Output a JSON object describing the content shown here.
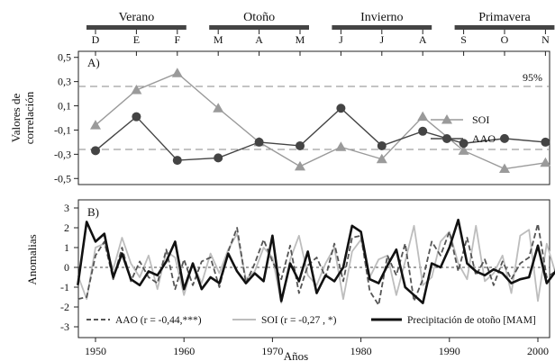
{
  "chart_data": [
    {
      "panel_label": "A)",
      "type": "line",
      "ylabel_lines": [
        "Valores de",
        "correlación"
      ],
      "ylim": [
        -0.55,
        0.55
      ],
      "yticks": [
        "0,5",
        "0,3",
        "0,1",
        "-0,1",
        "-0,3",
        "-0,5"
      ],
      "ytick_values": [
        0.5,
        0.3,
        0.1,
        -0.1,
        -0.3,
        -0.5
      ],
      "categories": [
        "D",
        "E",
        "F",
        "M",
        "A",
        "M",
        "J",
        "J",
        "A",
        "S",
        "O",
        "N"
      ],
      "seasons": [
        {
          "label": "Verano",
          "from": 0,
          "to": 2
        },
        {
          "label": "Otoño",
          "from": 3,
          "to": 5
        },
        {
          "label": "Invierno",
          "from": 6,
          "to": 8
        },
        {
          "label": "Primavera",
          "from": 9,
          "to": 11
        }
      ],
      "significance_level": 0.26,
      "significance_label": "95%",
      "series": [
        {
          "name": "SOI",
          "color": "#9a9a9a",
          "marker": "triangle",
          "values": [
            -0.06,
            0.23,
            0.37,
            0.08,
            -0.2,
            -0.4,
            -0.24,
            -0.34,
            0.01,
            -0.27,
            -0.42,
            -0.37
          ]
        },
        {
          "name": "AAO",
          "color": "#444444",
          "marker": "circle",
          "values": [
            -0.27,
            0.01,
            -0.35,
            -0.33,
            -0.2,
            -0.23,
            0.08,
            -0.23,
            -0.11,
            -0.21,
            -0.17,
            -0.2
          ]
        }
      ]
    },
    {
      "panel_label": "B)",
      "type": "line",
      "ylabel": "Anomalias",
      "xlabel": "Años",
      "xlim": [
        1945,
        2007
      ],
      "xticks": [
        1950,
        1960,
        1970,
        1980,
        1990,
        2000
      ],
      "ylim": [
        -3.2,
        3.2
      ],
      "yticks": [
        3,
        2,
        1,
        0,
        -1,
        -2,
        -3
      ],
      "start_year": 1948,
      "series": [
        {
          "name": "AAO (r = -0,44,***)",
          "color": "#555555",
          "style": "dashed",
          "values": [
            -1.6,
            -1.5,
            0.6,
            1.3,
            -0.6,
            1.0,
            -0.7,
            0.3,
            -0.5,
            -0.8,
            0.9,
            -1.1,
            0.4,
            -0.9,
            0.3,
            0.5,
            -1.0,
            0.8,
            2.0,
            -0.8,
            0.2,
            1.4,
            0.3,
            -0.6,
            1.1,
            -1.3,
            0.1,
            0.5,
            -0.5,
            1.2,
            -0.7,
            1.5,
            1.6,
            -1.2,
            -1.9,
            0.6,
            -0.4,
            1.2,
            -1.7,
            -0.6,
            1.3,
            0.6,
            1.8,
            -0.2,
            1.5,
            -0.4,
            0.4,
            -0.9,
            0.3,
            -0.6,
            0.2,
            0.5,
            2.2,
            -0.5,
            -0.2,
            0.2
          ]
        },
        {
          "name": "SOI (r = -0,27 , *)",
          "color": "#bdbdbd",
          "style": "solid",
          "values": [
            -0.4,
            -1.6,
            1.0,
            1.2,
            -0.1,
            1.5,
            0.2,
            -0.5,
            0.6,
            -1.1,
            0.8,
            0.5,
            -1.4,
            0.2,
            -0.8,
            0.7,
            -0.3,
            0.9,
            1.7,
            -0.6,
            -0.2,
            1.0,
            0.5,
            -1.8,
            0.4,
            1.6,
            -0.4,
            -0.9,
            0.2,
            1.0,
            -1.6,
            0.8,
            1.4,
            -0.5,
            0.4,
            0.6,
            -1.4,
            0.3,
            2.1,
            -0.9,
            -0.5,
            1.3,
            1.8,
            0.2,
            -0.6,
            2.1,
            -0.7,
            -0.3,
            0.6,
            -1.3,
            1.6,
            1.9,
            -1.7,
            1.2,
            -0.3,
            0.4
          ]
        },
        {
          "name": "Precipitación de otoño [MAM]",
          "color": "#111111",
          "style": "solid",
          "values": [
            -0.9,
            2.3,
            1.3,
            1.7,
            -0.5,
            0.7,
            -0.6,
            -0.9,
            -0.2,
            -0.4,
            0.3,
            1.3,
            -1.1,
            0.2,
            -1.1,
            -0.5,
            -0.8,
            0.7,
            -0.2,
            -0.8,
            -0.3,
            -0.7,
            1.6,
            -1.7,
            0.2,
            -0.7,
            0.8,
            -1.3,
            -0.4,
            -0.7,
            0.0,
            2.1,
            1.8,
            -0.6,
            -0.8,
            0.1,
            0.9,
            -1.0,
            -1.4,
            -1.8,
            0.2,
            0.0,
            1.0,
            2.4,
            0.2,
            -0.2,
            -0.4,
            -0.1,
            -0.3,
            -0.8,
            -0.6,
            -0.5,
            1.1,
            -0.8,
            -0.2,
            2.0
          ]
        }
      ]
    }
  ]
}
